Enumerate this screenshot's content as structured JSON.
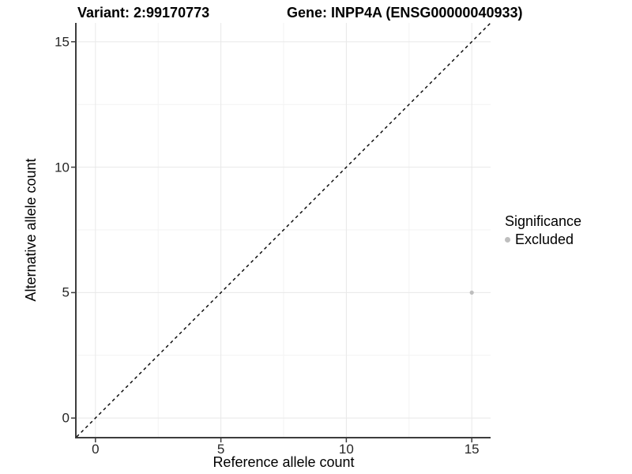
{
  "chart_data": {
    "type": "scatter",
    "title_left": "Variant: 2:99170773",
    "title_right": "Gene: INPP4A (ENSG00000040933)",
    "xlabel": "Reference allele count",
    "ylabel": "Alternative allele count",
    "xlim": [
      -0.75,
      15.75
    ],
    "ylim": [
      -0.75,
      15.75
    ],
    "x_ticks": [
      0,
      5,
      10,
      15
    ],
    "y_ticks": [
      0,
      5,
      10,
      15
    ],
    "x_minor_ticks": [
      2.5,
      7.5,
      12.5
    ],
    "y_minor_ticks": [
      2.5,
      7.5,
      12.5
    ],
    "grid": "major and minor gridlines, white panel background",
    "series": [
      {
        "name": "Excluded",
        "marker": "circle",
        "color": "#bebebe",
        "points": [
          {
            "x": 15,
            "y": 5
          }
        ]
      }
    ],
    "reference_line": {
      "slope": 1,
      "intercept": 0,
      "style": "dashed",
      "color": "#000000"
    },
    "legend": {
      "title": "Significance",
      "position": "right-middle",
      "entries": [
        {
          "label": "Excluded",
          "color": "#bebebe",
          "marker": "circle"
        }
      ]
    }
  },
  "colors": {
    "background": "#ffffff",
    "grid_major": "#e8e8e8",
    "grid_minor": "#f3f3f3",
    "axis_line": "#3d3d3d",
    "tick_text": "#262626",
    "title_text": "#000000",
    "point": "#bebebe"
  }
}
